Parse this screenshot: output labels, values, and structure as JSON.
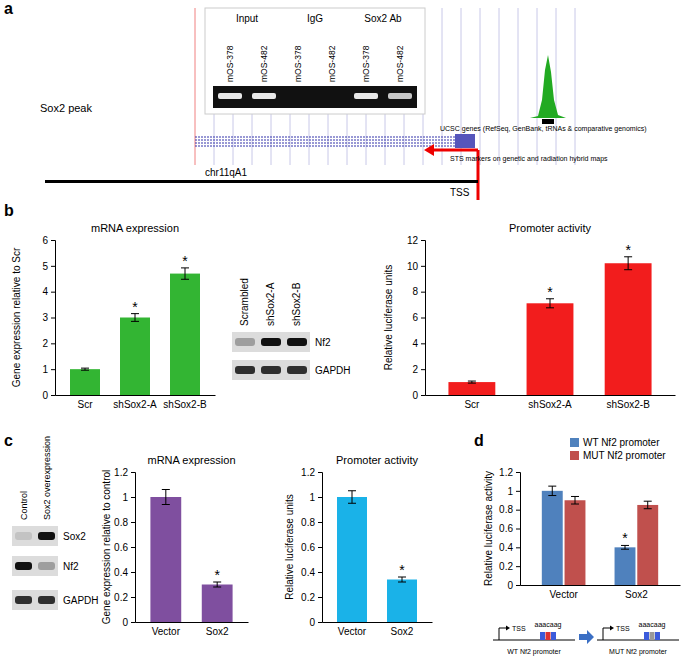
{
  "panel_labels": [
    "a",
    "b",
    "c",
    "d"
  ],
  "panel_a": {
    "gel": {
      "groups": [
        "Input",
        "IgG",
        "Sox2 Ab"
      ],
      "lanes": [
        "mOS-378",
        "mOS-482",
        "mOS-378",
        "mOS-482",
        "mOS-378",
        "mOS-482"
      ]
    },
    "track_label": "Sox2 peak",
    "genes_track": "UCSC genes (RefSeq, GenBank, tRNAs & comparative genomics)",
    "sts_track": "STS markers on genetic and radiation hybrid maps",
    "chromosome": "chr11qA1",
    "tss": "TSS"
  },
  "blots": [
    {
      "lanes": [
        "Scrambled",
        "shSox2-A",
        "shSox2-B"
      ],
      "rows": [
        "Nf2",
        "GAPDH"
      ]
    },
    {
      "lanes": [
        "Control",
        "Sox2 overexpression"
      ],
      "rows": [
        "Sox2",
        "Nf2",
        "GAPDH"
      ]
    }
  ],
  "promoter_diagram": {
    "sequence": "aaacaag",
    "constructs": [
      "WT Nf2 promoter",
      "MUT Nf2 promoter"
    ],
    "tss": "TSS"
  },
  "chart_data": [
    {
      "type": "bar",
      "title": "mRNA expression",
      "y_label": "Gene expression relative to Scr",
      "categories": [
        "Scr",
        "shSox2-A",
        "shSox2-B"
      ],
      "values": [
        1,
        3,
        4.7
      ],
      "errors": [
        0.04,
        0.15,
        0.22
      ],
      "significance": [
        null,
        "*",
        "*"
      ],
      "color": "#33b533",
      "ylim": [
        0,
        6
      ],
      "yticks": [
        0,
        1,
        2,
        3,
        4,
        5,
        6
      ],
      "grid": false
    },
    {
      "type": "bar",
      "title": "Promoter activity",
      "y_label": "Relative luciferase units",
      "categories": [
        "Scr",
        "shSox2-A",
        "shSox2-B"
      ],
      "values": [
        1,
        7.1,
        10.2
      ],
      "errors": [
        0.08,
        0.35,
        0.5
      ],
      "significance": [
        null,
        "*",
        "*"
      ],
      "color": "#f21d1d",
      "ylim": [
        0,
        12
      ],
      "yticks": [
        0,
        2,
        4,
        6,
        8,
        10,
        12
      ],
      "grid": false
    },
    {
      "type": "bar",
      "title": "mRNA expression",
      "y_label": "Gene expression relative to control",
      "categories": [
        "Vector",
        "Sox2"
      ],
      "values": [
        1,
        0.3
      ],
      "errors": [
        0.06,
        0.02
      ],
      "significance": [
        null,
        "*"
      ],
      "color": "#7f4f9f",
      "ylim": [
        0,
        1.2
      ],
      "yticks": [
        0,
        0.2,
        0.4,
        0.6,
        0.8,
        1,
        1.2
      ],
      "grid": false
    },
    {
      "type": "bar",
      "title": "Promoter activity",
      "y_label": "Relative luciferase units",
      "categories": [
        "Vector",
        "Sox2"
      ],
      "values": [
        1,
        0.34
      ],
      "errors": [
        0.05,
        0.02
      ],
      "significance": [
        null,
        "*"
      ],
      "color": "#1ab2e8",
      "ylim": [
        0,
        1.2
      ],
      "yticks": [
        0,
        0.2,
        0.4,
        0.6,
        0.8,
        1,
        1.2
      ],
      "grid": false
    },
    {
      "type": "bar",
      "y_label": "Relative luciferase activity",
      "categories": [
        "Vector",
        "Sox2"
      ],
      "series": [
        {
          "name": "WT Nf2 promoter",
          "color": "#4f81bd",
          "values": [
            1,
            0.4
          ],
          "errors": [
            0.05,
            0.02
          ],
          "significance": [
            null,
            "*"
          ]
        },
        {
          "name": "MUT Nf2 promoter",
          "color": "#c0504d",
          "values": [
            0.9,
            0.85
          ],
          "errors": [
            0.04,
            0.04
          ],
          "significance": [
            null,
            null
          ]
        }
      ],
      "legend": "top-right",
      "ylim": [
        0,
        1.2
      ],
      "yticks": [
        0,
        0.2,
        0.4,
        0.6,
        0.8,
        1,
        1.2
      ],
      "grid": false
    }
  ]
}
